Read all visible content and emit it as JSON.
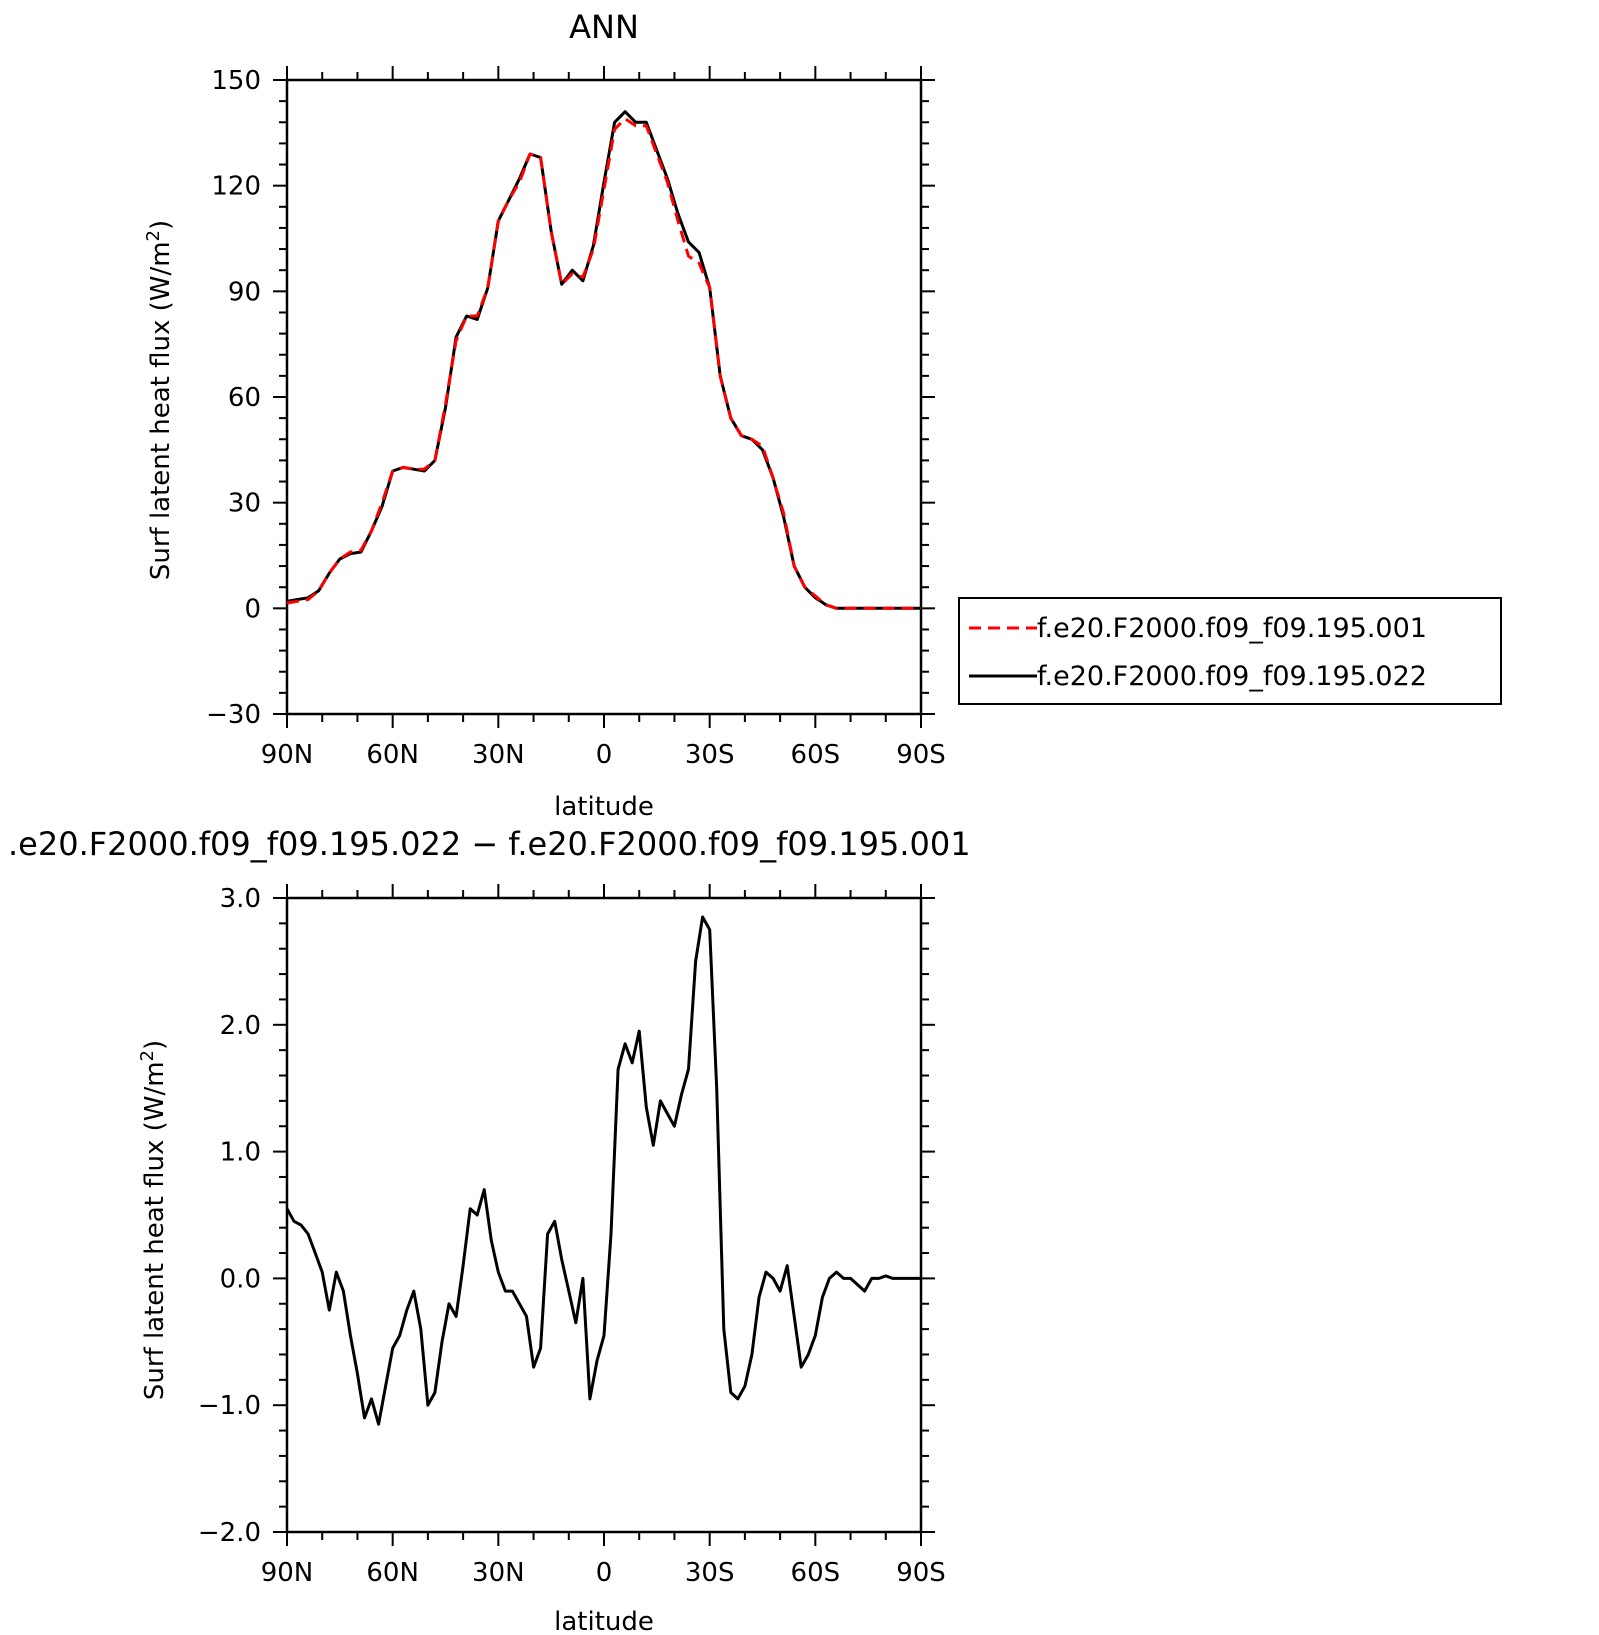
{
  "chart_data": [
    {
      "type": "line",
      "title": "ANN",
      "xlabel": "latitude",
      "ylabel": "Surf latent heat flux (W/m",
      "ylabel_sup": "2",
      "ylabel_close": ")",
      "xlim": [
        90,
        -90
      ],
      "ylim": [
        -30,
        150
      ],
      "x_ticks": [
        90,
        60,
        30,
        0,
        -30,
        -60,
        -90
      ],
      "x_tick_labels": [
        "90N",
        "60N",
        "30N",
        "0",
        "30S",
        "60S",
        "90S"
      ],
      "y_ticks": [
        -30,
        0,
        30,
        60,
        90,
        120,
        150
      ],
      "y_tick_labels": [
        "−30",
        "0",
        "30",
        "60",
        "90",
        "120",
        "150"
      ],
      "legend_position": "right",
      "series": [
        {
          "name": "f.e20.F2000.f09_f09.195.001",
          "color": "#ff0000",
          "dash": "dashed",
          "x": [
            90,
            87,
            84,
            81,
            78,
            75,
            72,
            69,
            66,
            63,
            60,
            57,
            54,
            51,
            48,
            45,
            42,
            39,
            36,
            33,
            30,
            27,
            24,
            21,
            18,
            15,
            12,
            9,
            6,
            3,
            0,
            -3,
            -6,
            -9,
            -12,
            -15,
            -18,
            -21,
            -24,
            -27,
            -30,
            -33,
            -36,
            -39,
            -42,
            -45,
            -48,
            -51,
            -54,
            -57,
            -60,
            -63,
            -66,
            -69,
            -72,
            -75,
            -78,
            -81,
            -84,
            -87,
            -90
          ],
          "y": [
            1.5,
            2,
            2.5,
            5,
            10,
            14,
            16,
            16.5,
            22,
            30,
            39,
            40,
            39.5,
            39.5,
            42,
            58,
            76,
            83,
            83,
            91,
            110,
            116,
            121,
            129,
            128,
            107,
            92,
            95,
            94,
            102,
            119,
            136,
            139,
            137,
            137,
            129,
            121,
            110,
            100,
            98,
            91,
            66,
            54,
            49,
            48,
            46,
            37,
            27,
            12,
            6,
            3.5,
            1,
            0,
            0,
            0,
            0,
            0,
            0,
            0,
            0,
            0
          ]
        },
        {
          "name": "f.e20.F2000.f09_f09.195.022",
          "color": "#000000",
          "dash": "solid",
          "x": [
            90,
            87,
            84,
            81,
            78,
            75,
            72,
            69,
            66,
            63,
            60,
            57,
            54,
            51,
            48,
            45,
            42,
            39,
            36,
            33,
            30,
            27,
            24,
            21,
            18,
            15,
            12,
            9,
            6,
            3,
            0,
            -3,
            -6,
            -9,
            -12,
            -15,
            -18,
            -21,
            -24,
            -27,
            -30,
            -33,
            -36,
            -39,
            -42,
            -45,
            -48,
            -51,
            -54,
            -57,
            -60,
            -63,
            -66,
            -69,
            -72,
            -75,
            -78,
            -81,
            -84,
            -87,
            -90
          ],
          "y": [
            2,
            2.5,
            3,
            5,
            10,
            14,
            15.5,
            16,
            22,
            29,
            39,
            40,
            39.5,
            39,
            42,
            57,
            77,
            83,
            82,
            91,
            110,
            116,
            122,
            129,
            128,
            107,
            92,
            96,
            93,
            103,
            121,
            138,
            141,
            138,
            138,
            130,
            122,
            112,
            104,
            101,
            91,
            66,
            54,
            49,
            48,
            45,
            37,
            26,
            12,
            6,
            3,
            1,
            0,
            0,
            0,
            0,
            0,
            0,
            0,
            0,
            0
          ]
        }
      ]
    },
    {
      "type": "line",
      "title": ".e20.F2000.f09_f09.195.022 − f.e20.F2000.f09_f09.195.001",
      "xlabel": "latitude",
      "ylabel": "Surf latent heat flux (W/m",
      "ylabel_sup": "2",
      "ylabel_close": ")",
      "xlim": [
        90,
        -90
      ],
      "ylim": [
        -2.0,
        3.0
      ],
      "x_ticks": [
        90,
        60,
        30,
        0,
        -30,
        -60,
        -90
      ],
      "x_tick_labels": [
        "90N",
        "60N",
        "30N",
        "0",
        "30S",
        "60S",
        "90S"
      ],
      "y_ticks": [
        -2,
        -1,
        0,
        1,
        2,
        3
      ],
      "y_tick_labels": [
        "−2.0",
        "−1.0",
        "0.0",
        "1.0",
        "2.0",
        "3.0"
      ],
      "series": [
        {
          "color": "#000000",
          "dash": "solid",
          "x": [
            90,
            88,
            86,
            84,
            82,
            80,
            78,
            76,
            74,
            72,
            70,
            68,
            66,
            64,
            62,
            60,
            58,
            56,
            54,
            52,
            50,
            48,
            46,
            44,
            42,
            40,
            38,
            36,
            34,
            32,
            30,
            28,
            26,
            24,
            22,
            20,
            18,
            16,
            14,
            12,
            10,
            8,
            6,
            4,
            2,
            0,
            -2,
            -4,
            -6,
            -8,
            -10,
            -12,
            -14,
            -16,
            -18,
            -20,
            -22,
            -24,
            -26,
            -28,
            -30,
            -32,
            -34,
            -36,
            -38,
            -40,
            -42,
            -44,
            -46,
            -48,
            -50,
            -52,
            -54,
            -56,
            -58,
            -60,
            -62,
            -64,
            -66,
            -68,
            -70,
            -72,
            -74,
            -76,
            -78,
            -80,
            -82,
            -84,
            -86,
            -88,
            -90
          ],
          "y": [
            0.55,
            0.45,
            0.42,
            0.35,
            0.2,
            0.05,
            -0.25,
            0.05,
            -0.1,
            -0.45,
            -0.75,
            -1.1,
            -0.95,
            -1.15,
            -0.85,
            -0.55,
            -0.45,
            -0.25,
            -0.1,
            -0.4,
            -1.0,
            -0.9,
            -0.5,
            -0.2,
            -0.3,
            0.1,
            0.55,
            0.5,
            0.7,
            0.3,
            0.05,
            -0.1,
            -0.1,
            -0.2,
            -0.3,
            -0.7,
            -0.55,
            0.35,
            0.45,
            0.15,
            -0.1,
            -0.35,
            0.0,
            -0.95,
            -0.65,
            -0.45,
            0.35,
            1.65,
            1.85,
            1.7,
            1.95,
            1.35,
            1.05,
            1.4,
            1.3,
            1.2,
            1.45,
            1.65,
            2.5,
            2.85,
            2.75,
            1.5,
            -0.4,
            -0.9,
            -0.95,
            -0.85,
            -0.6,
            -0.15,
            0.05,
            0.0,
            -0.1,
            0.1,
            -0.3,
            -0.7,
            -0.6,
            -0.45,
            -0.15,
            0.0,
            0.05,
            0.0,
            0.0,
            -0.05,
            -0.1,
            0.0,
            0.0,
            0.02,
            0.0,
            0.0,
            0.0,
            0.0,
            0.0
          ]
        }
      ]
    }
  ]
}
